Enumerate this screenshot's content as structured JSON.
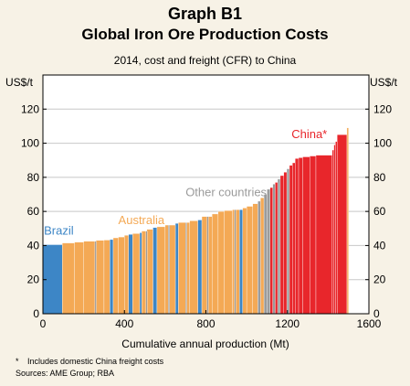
{
  "header": {
    "graph_label": "Graph B1",
    "title": "Global Iron Ore Production Costs",
    "subtitle": "2014,  cost and freight (CFR) to China"
  },
  "footer": {
    "footnote_marker": "*",
    "footnote": "Includes domestic China freight costs",
    "sources": "Sources: AME Group; RBA"
  },
  "colors": {
    "brazil": "#3d86c6",
    "australia": "#f4a955",
    "other": "#9b9b9b",
    "china": "#e8262b",
    "background": "#f7f2e6",
    "plot_background": "#ffffff",
    "grid": "#c8c8c8"
  },
  "chart_data": {
    "type": "bar",
    "subtype": "cost-curve",
    "xlabel": "Cumulative annual production (Mt)",
    "ylabel_left": "US$/t",
    "ylabel_right": "US$/t",
    "xlim": [
      0,
      1600
    ],
    "ylim": [
      0,
      140
    ],
    "x_ticks": [
      0,
      400,
      800,
      1200,
      1600
    ],
    "y_ticks": [
      0,
      20,
      40,
      60,
      80,
      100,
      120
    ],
    "grid": "horizontal",
    "series": [
      {
        "name": "Brazil",
        "label_position": "left, near y 47",
        "segments": [
          {
            "x0": 0,
            "x1": 95,
            "y": 40.5
          },
          {
            "x0": 328,
            "x1": 345,
            "y": 43.5
          },
          {
            "x0": 420,
            "x1": 440,
            "y": 46.5
          },
          {
            "x0": 475,
            "x1": 485,
            "y": 47.5
          },
          {
            "x0": 540,
            "x1": 560,
            "y": 50.5
          },
          {
            "x0": 650,
            "x1": 665,
            "y": 53
          },
          {
            "x0": 760,
            "x1": 780,
            "y": 55
          },
          {
            "x0": 965,
            "x1": 980,
            "y": 61
          }
        ]
      },
      {
        "name": "Australia",
        "label_position": "centre-left, near y 53",
        "segments": [
          {
            "x0": 95,
            "x1": 155,
            "y": 41.5
          },
          {
            "x0": 155,
            "x1": 200,
            "y": 42
          },
          {
            "x0": 200,
            "x1": 260,
            "y": 42.5
          },
          {
            "x0": 260,
            "x1": 300,
            "y": 43
          },
          {
            "x0": 300,
            "x1": 328,
            "y": 43.2
          },
          {
            "x0": 345,
            "x1": 370,
            "y": 44.5
          },
          {
            "x0": 370,
            "x1": 400,
            "y": 45
          },
          {
            "x0": 400,
            "x1": 420,
            "y": 46
          },
          {
            "x0": 440,
            "x1": 475,
            "y": 47
          },
          {
            "x0": 485,
            "x1": 510,
            "y": 48.5
          },
          {
            "x0": 510,
            "x1": 540,
            "y": 49.5
          },
          {
            "x0": 560,
            "x1": 600,
            "y": 51
          },
          {
            "x0": 600,
            "x1": 650,
            "y": 52
          },
          {
            "x0": 665,
            "x1": 720,
            "y": 53.5
          },
          {
            "x0": 720,
            "x1": 760,
            "y": 54.5
          },
          {
            "x0": 780,
            "x1": 830,
            "y": 57
          },
          {
            "x0": 830,
            "x1": 860,
            "y": 58.5
          },
          {
            "x0": 860,
            "x1": 890,
            "y": 60
          },
          {
            "x0": 890,
            "x1": 930,
            "y": 60.5
          },
          {
            "x0": 930,
            "x1": 965,
            "y": 61
          },
          {
            "x0": 980,
            "x1": 1000,
            "y": 62
          },
          {
            "x0": 1000,
            "x1": 1030,
            "y": 63
          },
          {
            "x0": 1030,
            "x1": 1055,
            "y": 64.5
          },
          {
            "x0": 1068,
            "x1": 1085,
            "y": 68
          },
          {
            "x0": 1492,
            "x1": 1500,
            "y": 109
          }
        ]
      },
      {
        "name": "Other countries",
        "label_position": "centre, near y 70",
        "segments": [
          {
            "x0": 255,
            "x1": 262,
            "y": 42.5
          },
          {
            "x0": 505,
            "x1": 512,
            "y": 48.5
          },
          {
            "x0": 615,
            "x1": 622,
            "y": 52
          },
          {
            "x0": 700,
            "x1": 706,
            "y": 53.5
          },
          {
            "x0": 805,
            "x1": 812,
            "y": 57
          },
          {
            "x0": 940,
            "x1": 947,
            "y": 61
          },
          {
            "x0": 1055,
            "x1": 1068,
            "y": 66
          },
          {
            "x0": 1085,
            "x1": 1100,
            "y": 70
          },
          {
            "x0": 1100,
            "x1": 1115,
            "y": 73
          },
          {
            "x0": 1128,
            "x1": 1140,
            "y": 76
          },
          {
            "x0": 1152,
            "x1": 1165,
            "y": 79
          },
          {
            "x0": 1197,
            "x1": 1210,
            "y": 85
          }
        ]
      },
      {
        "name": "China",
        "name_marker": "*",
        "label_position": "top-right, near y 104",
        "segments": [
          {
            "x0": 1115,
            "x1": 1128,
            "y": 74
          },
          {
            "x0": 1140,
            "x1": 1152,
            "y": 77
          },
          {
            "x0": 1165,
            "x1": 1182,
            "y": 81
          },
          {
            "x0": 1182,
            "x1": 1197,
            "y": 83
          },
          {
            "x0": 1210,
            "x1": 1225,
            "y": 87
          },
          {
            "x0": 1225,
            "x1": 1238,
            "y": 88.5
          },
          {
            "x0": 1238,
            "x1": 1255,
            "y": 91
          },
          {
            "x0": 1255,
            "x1": 1275,
            "y": 91.5
          },
          {
            "x0": 1275,
            "x1": 1310,
            "y": 92
          },
          {
            "x0": 1310,
            "x1": 1340,
            "y": 92.5
          },
          {
            "x0": 1340,
            "x1": 1420,
            "y": 93
          },
          {
            "x0": 1420,
            "x1": 1428,
            "y": 96
          },
          {
            "x0": 1428,
            "x1": 1436,
            "y": 99
          },
          {
            "x0": 1436,
            "x1": 1444,
            "y": 101
          },
          {
            "x0": 1444,
            "x1": 1492,
            "y": 105
          }
        ]
      }
    ]
  }
}
